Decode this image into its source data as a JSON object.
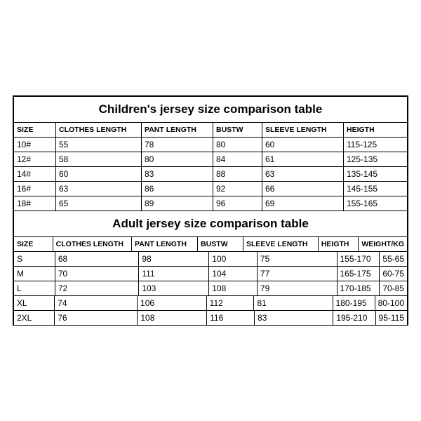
{
  "children": {
    "title": "Children's jersey size comparison table",
    "columns": [
      "SIZE",
      "CLOTHES LENGTH",
      "PANT LENGTH",
      "BUSTW",
      "SLEEVE LENGTH",
      "HEIGTH"
    ],
    "rows": [
      [
        "10#",
        "55",
        "78",
        "80",
        "60",
        "115-125"
      ],
      [
        "12#",
        "58",
        "80",
        "84",
        "61",
        "125-135"
      ],
      [
        "14#",
        "60",
        "83",
        "88",
        "63",
        "135-145"
      ],
      [
        "16#",
        "63",
        "86",
        "92",
        "66",
        "145-155"
      ],
      [
        "18#",
        "65",
        "89",
        "96",
        "69",
        "155-165"
      ]
    ]
  },
  "adult": {
    "title": "Adult jersey size comparison table",
    "columns": [
      "SIZE",
      "CLOTHES LENGTH",
      "PANT LENGTH",
      "BUSTW",
      "SLEEVE LENGTH",
      "HEIGTH",
      "WEIGHT/KG"
    ],
    "rows": [
      [
        "S",
        "68",
        "98",
        "100",
        "75",
        "155-170",
        "55-65"
      ],
      [
        "M",
        "70",
        "111",
        "104",
        "77",
        "165-175",
        "60-75"
      ],
      [
        "L",
        "72",
        "103",
        "108",
        "79",
        "170-185",
        "70-85"
      ],
      [
        "XL",
        "74",
        "106",
        "112",
        "81",
        "180-195",
        "80-100"
      ],
      [
        "2XL",
        "76",
        "108",
        "116",
        "83",
        "195-210",
        "95-115"
      ]
    ]
  },
  "style": {
    "border_color": "#000000",
    "background_color": "#ffffff",
    "title_fontsize_pt": 17,
    "header_fontsize_pt": 10.5,
    "body_fontsize_pt": 12,
    "font_family": "Arial"
  }
}
